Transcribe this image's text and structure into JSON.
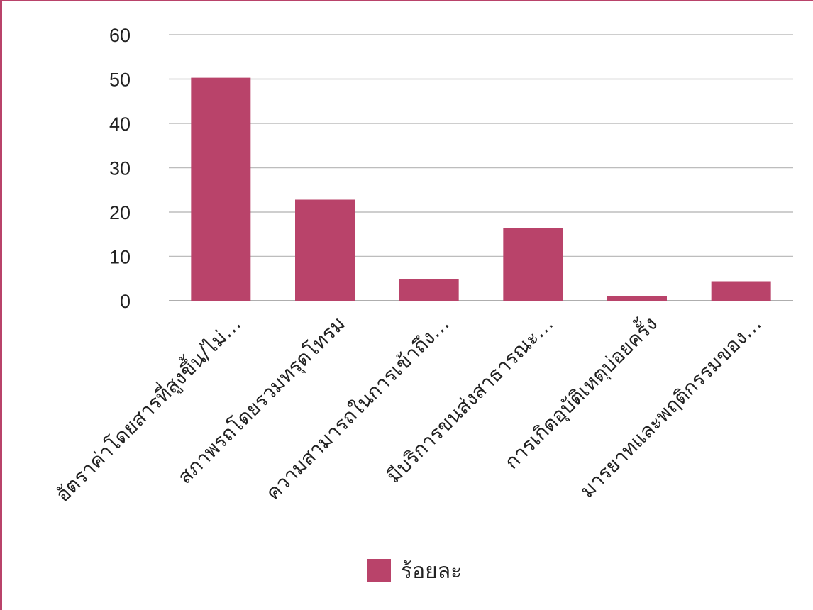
{
  "chart_data": {
    "type": "bar",
    "categories": [
      "อัตราค่าโดยสารที่สูงขึ้น/ไม่…",
      "สภาพรถโดยรวมทรุดโทรม",
      "ความสามารถในการเข้าถึง…",
      "มีบริการขนส่งสาธารณะ…",
      "การเกิดอุบัติเหตุบ่อยครั้ง",
      "มารยาทและพฤติกรรมของ…"
    ],
    "series": [
      {
        "name": "ร้อยละ",
        "values": [
          50.3,
          22.8,
          4.8,
          16.4,
          1.1,
          4.4
        ]
      }
    ],
    "yticks": [
      "0",
      "10",
      "20",
      "30",
      "40",
      "50",
      "60"
    ],
    "ylim": [
      0,
      60
    ],
    "grid": true,
    "legend": "bottom-center",
    "colors": {
      "bar": "#b9436a",
      "grid": "#bdbdbd",
      "border": "#b9436a"
    }
  }
}
